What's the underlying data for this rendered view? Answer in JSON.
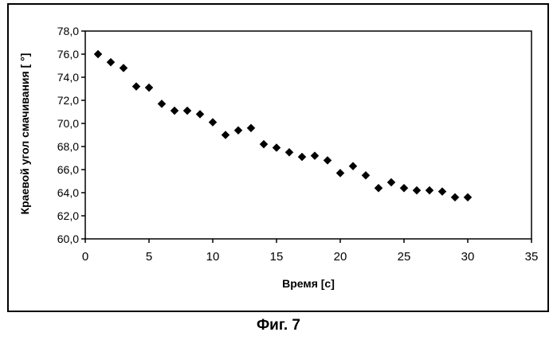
{
  "chart_data": {
    "type": "scatter",
    "title": "",
    "xlabel": "Время [с]",
    "ylabel": "Краевой угол смачивания [ °]",
    "xlim": [
      0,
      35
    ],
    "ylim": [
      60,
      78
    ],
    "xticks": [
      "0",
      "5",
      "10",
      "15",
      "20",
      "25",
      "30",
      "35"
    ],
    "yticks": [
      "60,0",
      "62,0",
      "64,0",
      "66,0",
      "68,0",
      "70,0",
      "72,0",
      "74,0",
      "76,0",
      "78,0"
    ],
    "grid": false,
    "legend": "none",
    "series": [
      {
        "name": "Краевой угол",
        "marker": "diamond",
        "color": "#000000",
        "x": [
          1,
          2,
          3,
          4,
          5,
          6,
          7,
          8,
          9,
          10,
          11,
          12,
          13,
          14,
          15,
          16,
          17,
          18,
          19,
          20,
          21,
          22,
          23,
          24,
          25,
          26,
          27,
          28,
          29,
          30
        ],
        "y": [
          76.0,
          75.3,
          74.8,
          73.2,
          73.1,
          71.7,
          71.1,
          71.1,
          70.8,
          70.1,
          69.0,
          69.4,
          69.6,
          68.2,
          67.9,
          67.5,
          67.1,
          67.2,
          66.8,
          65.7,
          66.3,
          65.5,
          64.4,
          64.9,
          64.4,
          64.2,
          64.2,
          64.1,
          63.6,
          63.6
        ]
      }
    ]
  },
  "caption": "Фиг. 7"
}
